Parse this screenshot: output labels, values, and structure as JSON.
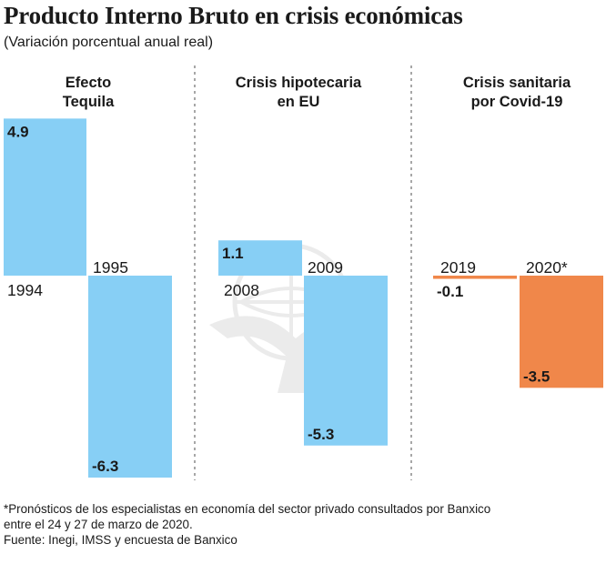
{
  "title": "Producto Interno Bruto en crisis económicas",
  "subtitle": "(Variación porcentual anual real)",
  "colors": {
    "blue": "#87cff5",
    "orange": "#f0874a",
    "divider": "#8a8a8a",
    "text": "#1a1a1a"
  },
  "chart_data": [
    {
      "type": "bar",
      "title_lines": [
        "Efecto",
        "Tequila"
      ],
      "categories": [
        "1994",
        "1995"
      ],
      "values": [
        4.9,
        -6.3
      ],
      "labels": [
        "4.9",
        "-6.3"
      ],
      "color": "#87cff5",
      "ylim": [
        -6.3,
        4.9
      ]
    },
    {
      "type": "bar",
      "title_lines": [
        "Crisis hipotecaria",
        "en EU"
      ],
      "categories": [
        "2008",
        "2009"
      ],
      "values": [
        1.1,
        -5.3
      ],
      "labels": [
        "1.1",
        "-5.3"
      ],
      "color": "#87cff5",
      "ylim": [
        -6.3,
        4.9
      ]
    },
    {
      "type": "bar",
      "title_lines": [
        "Crisis sanitaria",
        "por Covid-19"
      ],
      "categories": [
        "2019",
        "2020*"
      ],
      "values": [
        -0.1,
        -3.5
      ],
      "labels": [
        "-0.1",
        "-3.5"
      ],
      "color": "#f0874a",
      "ylim": [
        -6.3,
        4.9
      ]
    }
  ],
  "notes": {
    "footnote_line1": "*Pronósticos de los especialistas en economía del sector privado consultados por Banxico",
    "footnote_line2": "entre el 24 y 27 de marzo de 2020.",
    "source": "Fuente: Inegi, IMSS y encuesta de Banxico"
  }
}
